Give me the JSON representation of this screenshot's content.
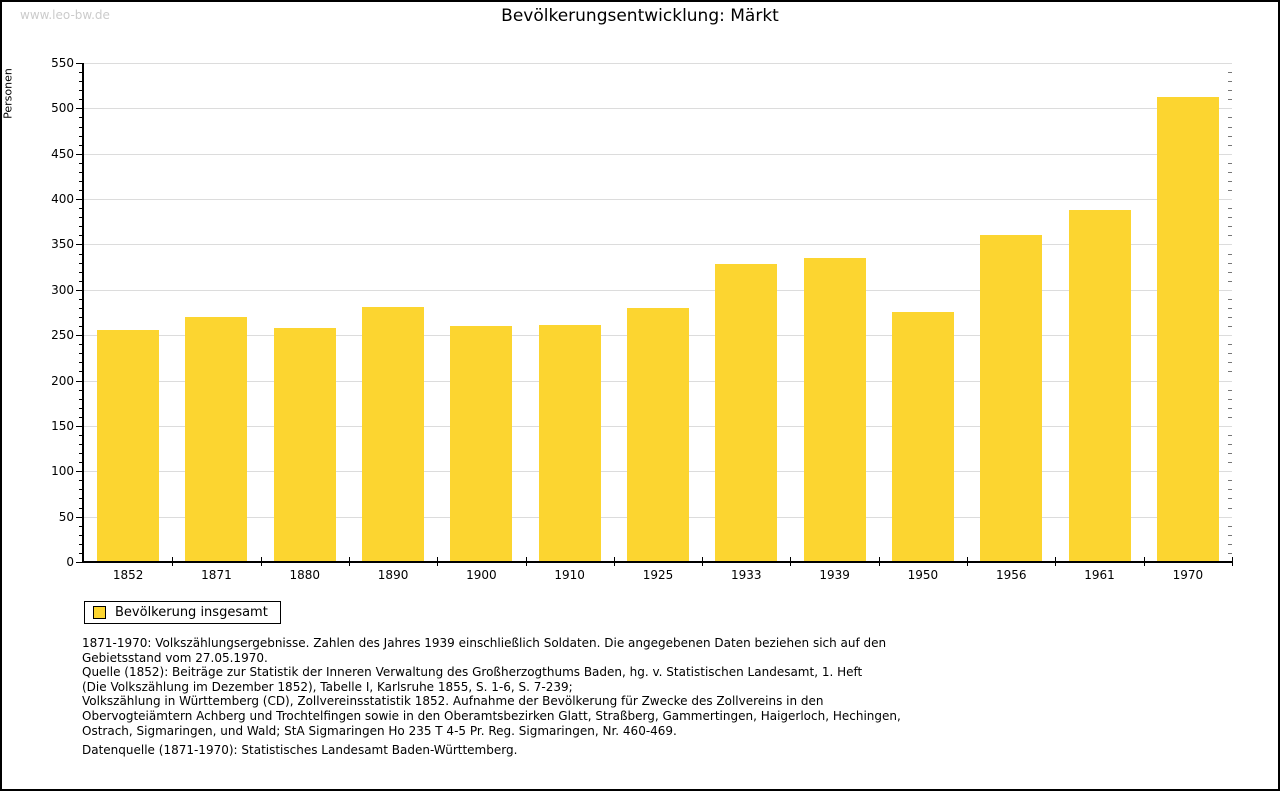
{
  "watermark": "www.leo-bw.de",
  "title": "Bevölkerungsentwicklung: Märkt",
  "chart_data": {
    "type": "bar",
    "title": "Bevölkerungsentwicklung: Märkt",
    "categories": [
      "1852",
      "1871",
      "1880",
      "1890",
      "1900",
      "1910",
      "1925",
      "1933",
      "1939",
      "1950",
      "1956",
      "1961",
      "1970"
    ],
    "values": [
      256,
      270,
      258,
      281,
      260,
      261,
      280,
      328,
      335,
      276,
      360,
      388,
      512
    ],
    "xlabel": "",
    "ylabel": "Personen",
    "ylim": [
      0,
      550
    ],
    "ytick_step": 50,
    "ytick_minor_step": 10,
    "yticks": [
      0,
      50,
      100,
      150,
      200,
      250,
      300,
      350,
      400,
      450,
      500,
      550
    ],
    "grid": true,
    "bar_color": "#fcd530",
    "legend_position": "bottom-left",
    "legend_entries": [
      "Bevölkerung insgesamt"
    ]
  },
  "legend": {
    "label": "Bevölkerung insgesamt",
    "swatch_color": "#fcd530"
  },
  "footnotes": {
    "text": "1871-1970: Volkszählungsergebnisse. Zahlen des Jahres 1939 einschließlich Soldaten. Die angegebenen Daten beziehen sich auf den\nGebietsstand vom 27.05.1970.\nQuelle (1852): Beiträge zur Statistik der Inneren Verwaltung des Großherzogthums Baden, hg. v. Statistischen Landesamt, 1. Heft\n(Die Volkszählung im Dezember 1852), Tabelle I, Karlsruhe 1855, S. 1-6, S. 7-239;\nVolkszählung in Württemberg (CD), Zollvereinsstatistik 1852. Aufnahme der Bevölkerung für Zwecke des Zollvereins in den\nObervogteiämtern Achberg und Trochtelfingen sowie in den Oberamtsbezirken Glatt, Straßberg, Gammertingen, Haigerloch, Hechingen,\nOstrach, Sigmaringen, und Wald; StA Sigmaringen Ho 235 T 4-5 Pr. Reg. Sigmaringen, Nr. 460-469."
  },
  "datasource": "Datenquelle (1871-1970): Statistisches Landesamt Baden-Württemberg."
}
